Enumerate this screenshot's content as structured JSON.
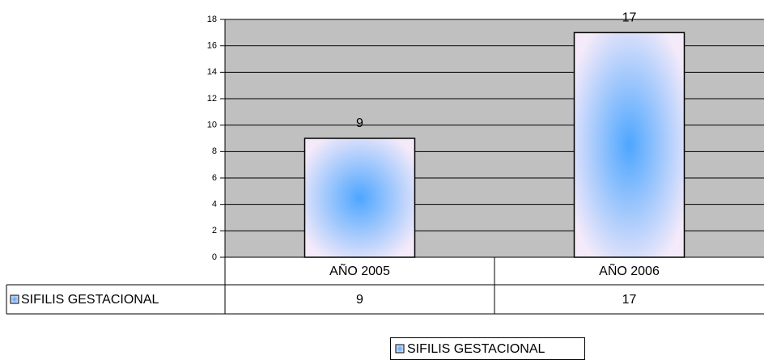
{
  "chart_data": {
    "type": "bar",
    "categories": [
      "AÑO 2005",
      "AÑO 2006"
    ],
    "series": [
      {
        "name": "SIFILIS GESTACIONAL",
        "color": "#4da6ff",
        "values": [
          9,
          17
        ]
      }
    ],
    "ylim": [
      0,
      18
    ],
    "yticks": [
      0,
      2,
      4,
      6,
      8,
      10,
      12,
      14,
      16,
      18
    ],
    "grid": true,
    "plot_background": "#c0c0c0",
    "legend": "bottom"
  }
}
